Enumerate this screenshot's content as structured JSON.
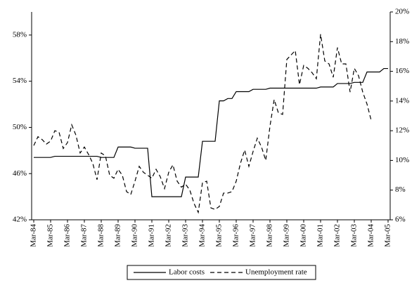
{
  "chart_data": {
    "type": "line",
    "categories": [
      "Mar-84",
      null,
      null,
      null,
      "Mar-85",
      null,
      null,
      null,
      "Mar-86",
      null,
      null,
      null,
      "Mar-87",
      null,
      null,
      null,
      "Mar-88",
      null,
      null,
      null,
      "Mar-89",
      null,
      null,
      null,
      "Mar-90",
      null,
      null,
      null,
      "Mar-91",
      null,
      null,
      null,
      "Mar-92",
      null,
      null,
      null,
      "Mar-93",
      null,
      null,
      null,
      "Mar-94",
      null,
      null,
      null,
      "Mar-95",
      null,
      null,
      null,
      "Mar-96",
      null,
      null,
      null,
      "Mar-97",
      null,
      null,
      null,
      "Mar-98",
      null,
      null,
      null,
      "Mar-99",
      null,
      null,
      null,
      "Mar-00",
      null,
      null,
      null,
      "Mar-01",
      null,
      null,
      null,
      "Mar-02",
      null,
      null,
      null,
      "Mar-03",
      null,
      null,
      null,
      "Mar-04",
      null,
      null,
      null,
      "Mar-05"
    ],
    "series": [
      {
        "name": "Labor costs",
        "color": "#000000",
        "dash": "none",
        "axis": "y",
        "values": [
          47.4,
          47.4,
          47.4,
          47.4,
          47.4,
          47.5,
          47.5,
          47.5,
          47.5,
          47.5,
          47.5,
          47.5,
          47.5,
          47.5,
          47.5,
          47.5,
          47.4,
          47.4,
          47.4,
          47.4,
          48.3,
          48.3,
          48.3,
          48.3,
          48.2,
          48.2,
          48.2,
          48.2,
          44.0,
          44.0,
          44.0,
          44.0,
          44.0,
          44.0,
          44.0,
          44.0,
          45.7,
          45.7,
          45.7,
          45.7,
          48.8,
          48.8,
          48.8,
          48.8,
          52.3,
          52.3,
          52.5,
          52.5,
          53.1,
          53.1,
          53.1,
          53.1,
          53.3,
          53.3,
          53.3,
          53.3,
          53.4,
          53.4,
          53.4,
          53.4,
          53.4,
          53.4,
          53.4,
          53.4,
          53.4,
          53.4,
          53.4,
          53.4,
          53.5,
          53.5,
          53.5,
          53.5,
          53.8,
          53.8,
          53.8,
          53.8,
          53.9,
          53.9,
          53.9,
          54.8,
          54.8,
          54.8,
          54.8,
          55.1,
          55.1
        ]
      },
      {
        "name": "Unemployment rate",
        "color": "#000000",
        "dash": "6,4",
        "axis": "y2",
        "values": [
          11.0,
          11.6,
          11.4,
          11.1,
          11.3,
          12.0,
          11.9,
          10.8,
          11.2,
          12.4,
          11.7,
          10.5,
          10.9,
          10.4,
          9.8,
          8.7,
          10.5,
          10.3,
          9.0,
          8.8,
          9.4,
          9.0,
          7.9,
          7.7,
          8.6,
          9.6,
          9.2,
          9.0,
          8.8,
          9.4,
          8.9,
          8.1,
          9.2,
          9.7,
          8.6,
          8.2,
          8.4,
          8.0,
          7.1,
          6.5,
          8.5,
          8.6,
          6.8,
          6.7,
          6.9,
          7.8,
          7.8,
          7.9,
          8.6,
          9.8,
          10.7,
          9.6,
          10.6,
          11.5,
          10.9,
          10.0,
          12.3,
          14.1,
          13.2,
          13.1,
          16.8,
          17.1,
          17.4,
          15.1,
          16.4,
          16.2,
          15.9,
          15.5,
          18.5,
          16.7,
          16.5,
          15.6,
          17.6,
          16.5,
          16.5,
          14.6,
          16.2,
          15.7,
          14.6,
          13.8,
          12.7,
          null,
          null,
          null,
          null
        ]
      }
    ],
    "ylim": [
      42,
      60
    ],
    "yticks": [
      {
        "value": 42,
        "label": "42%"
      },
      {
        "value": 46,
        "label": "46%"
      },
      {
        "value": 50,
        "label": "50%"
      },
      {
        "value": 54,
        "label": "54%"
      },
      {
        "value": 58,
        "label": "58%"
      }
    ],
    "y2lim": [
      6,
      20
    ],
    "y2ticks": [
      {
        "value": 6,
        "label": "6%"
      },
      {
        "value": 8,
        "label": "8%"
      },
      {
        "value": 10,
        "label": "10%"
      },
      {
        "value": 12,
        "label": "12%"
      },
      {
        "value": 14,
        "label": "14%"
      },
      {
        "value": 16,
        "label": "16%"
      },
      {
        "value": 18,
        "label": "18%"
      },
      {
        "value": 20,
        "label": "20%"
      }
    ],
    "grid": false
  }
}
